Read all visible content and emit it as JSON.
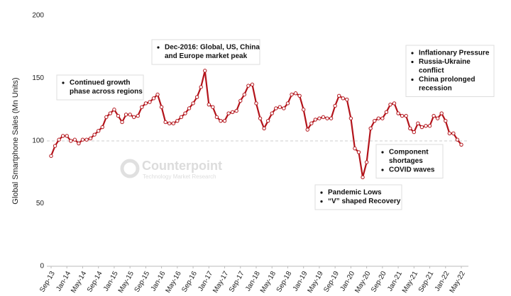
{
  "chart_data": {
    "type": "line",
    "y_label": "Global Smartphone Sales (Mn Units)",
    "categories": [
      "Sep-13",
      null,
      null,
      null,
      "Jan-14",
      null,
      null,
      null,
      "May-14",
      null,
      null,
      null,
      "Sep-14",
      null,
      null,
      null,
      "Jan-15",
      null,
      null,
      null,
      "May-15",
      null,
      null,
      null,
      "Sep-15",
      null,
      null,
      null,
      "Jan-16",
      null,
      null,
      null,
      "May-16",
      null,
      null,
      null,
      "Sep-16",
      null,
      null,
      null,
      "Jan-17",
      null,
      null,
      null,
      "May-17",
      null,
      null,
      null,
      "Sep-17",
      null,
      null,
      null,
      "Jan-18",
      null,
      null,
      null,
      "May-18",
      null,
      null,
      null,
      "Sep-18",
      null,
      null,
      null,
      "Jan-19",
      null,
      null,
      null,
      "May-19",
      null,
      null,
      null,
      "Sep-19",
      null,
      null,
      null,
      "Jan-20",
      null,
      null,
      null,
      "May-20",
      null,
      null,
      null,
      "Sep-20",
      null,
      null,
      null,
      "Jan-21",
      null,
      null,
      null,
      "May-21",
      null,
      null,
      null,
      "Sep-21",
      null,
      null,
      null,
      "Jan-22",
      null,
      null,
      null,
      "May-22"
    ],
    "series": [
      {
        "name": "Global",
        "color": "#b3141b",
        "values": [
          88,
          96,
          101,
          104,
          104,
          100,
          101,
          98,
          101,
          101,
          102,
          105,
          108,
          111,
          119,
          122,
          125,
          120,
          115,
          121,
          121,
          119,
          120,
          127,
          130,
          131,
          134,
          137,
          127,
          115,
          114,
          114,
          116,
          119,
          122,
          126,
          130,
          135,
          143,
          156,
          129,
          127,
          119,
          116,
          116,
          122,
          123,
          124,
          132,
          137,
          144,
          145,
          130,
          118,
          110,
          116,
          122,
          126,
          127,
          126,
          130,
          137,
          138,
          136,
          125,
          109,
          114,
          117,
          118,
          119,
          118,
          118,
          128,
          136,
          134,
          133,
          118,
          94,
          91,
          71,
          83,
          110,
          116,
          118,
          118,
          123,
          129,
          130,
          122,
          120,
          120,
          110,
          107,
          114,
          111,
          112,
          112,
          120,
          118,
          122,
          116,
          106,
          106,
          101,
          97
        ]
      }
    ],
    "ylim": [
      0,
      200
    ],
    "yticks": [
      0,
      50,
      100,
      150,
      200
    ],
    "reference_line": 100,
    "watermark": {
      "title": "Counterpoint",
      "subtitle": "Technology Market Research"
    },
    "annotations": [
      {
        "bullets": [
          [
            "Continued growth",
            "phase across regions"
          ]
        ]
      },
      {
        "bullets": [
          [
            "Dec-2016: Global, US, China",
            "and Europe market peak"
          ]
        ]
      },
      {
        "bullets": [
          [
            "Inflationary Pressure"
          ],
          [
            "Russia-Ukraine",
            "conflict"
          ],
          [
            "China prolonged",
            "recession"
          ]
        ]
      },
      {
        "bullets": [
          [
            "Component",
            "shortages"
          ],
          [
            "COVID waves"
          ]
        ]
      },
      {
        "bullets": [
          [
            "Pandemic Lows"
          ],
          [
            "“V” shaped Recovery"
          ]
        ]
      }
    ]
  }
}
